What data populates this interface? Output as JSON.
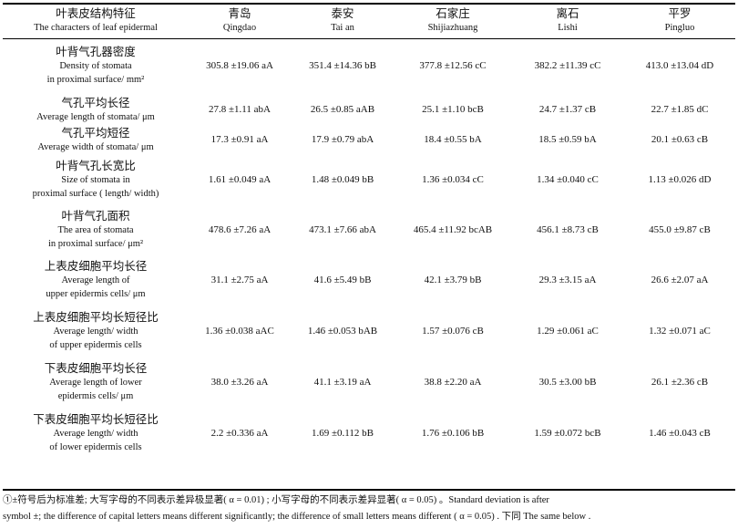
{
  "table": {
    "header": {
      "feature": {
        "zh": "叶表皮结构特征",
        "en": "The characters of leaf epidermal"
      },
      "sites": [
        {
          "zh": "青岛",
          "en": "Qingdao"
        },
        {
          "zh": "泰安",
          "en": "Tai an"
        },
        {
          "zh": "石家庄",
          "en": "Shijiazhuang"
        },
        {
          "zh": "离石",
          "en": "Lishi"
        },
        {
          "zh": "平罗",
          "en": "Pingluo"
        }
      ]
    },
    "rows": [
      {
        "zh": "叶背气孔器密度",
        "en": [
          "Density of stomata",
          "in proximal surface/ mm²"
        ],
        "values": [
          "305.8 ±19.06 aA",
          "351.4 ±14.36 bB",
          "377.8 ±12.56 cC",
          "382.2 ±11.39 cC",
          "413.0 ±13.04 dD"
        ]
      },
      {
        "zh": "气孔平均长径",
        "en": [
          "Average length of stomata/ μm"
        ],
        "values": [
          "27.8 ±1.11 abA",
          "26.5 ±0.85 aAB",
          "25.1 ±1.10 bcB",
          "24.7 ±1.37 cB",
          "22.7 ±1.85 dC"
        ]
      },
      {
        "zh": "气孔平均短径",
        "en": [
          "Average width of stomata/ μm"
        ],
        "values": [
          "17.3 ±0.91 aA",
          "17.9 ±0.79 abA",
          "18.4 ±0.55 bA",
          "18.5 ±0.59 bA",
          "20.1 ±0.63 cB"
        ]
      },
      {
        "zh": "叶背气孔长宽比",
        "en": [
          "Size of stomata in",
          "proximal surface ( length/ width)"
        ],
        "values": [
          "1.61 ±0.049 aA",
          "1.48 ±0.049 bB",
          "1.36 ±0.034 cC",
          "1.34 ±0.040 cC",
          "1.13 ±0.026 dD"
        ]
      },
      {
        "zh": "叶背气孔面积",
        "en": [
          "The area of stomata",
          "in proximal surface/ μm²"
        ],
        "values": [
          "478.6 ±7.26 aA",
          "473.1 ±7.66 abA",
          "465.4 ±11.92 bcAB",
          "456.1 ±8.73 cB",
          "455.0 ±9.87 cB"
        ]
      },
      {
        "zh": "上表皮细胞平均长径",
        "en": [
          "Average length of",
          "upper epidermis cells/ μm"
        ],
        "values": [
          "31.1 ±2.75 aA",
          "41.6 ±5.49 bB",
          "42.1 ±3.79 bB",
          "29.3 ±3.15 aA",
          "26.6 ±2.07 aA"
        ]
      },
      {
        "zh": "上表皮细胞平均长短径比",
        "en": [
          "Average length/ width",
          "of upper epidermis cells"
        ],
        "values": [
          "1.36 ±0.038 aAC",
          "1.46 ±0.053 bAB",
          "1.57 ±0.076 cB",
          "1.29 ±0.061 aC",
          "1.32 ±0.071 aC"
        ]
      },
      {
        "zh": "下表皮细胞平均长径",
        "en": [
          "Average length of lower",
          "epidermis cells/ μm"
        ],
        "values": [
          "38.0 ±3.26 aA",
          "41.1 ±3.19 aA",
          "38.8 ±2.20 aA",
          "30.5 ±3.00 bB",
          "26.1 ±2.36 cB"
        ]
      },
      {
        "zh": "下表皮细胞平均长短径比",
        "en": [
          "Average length/ width",
          "of lower epidermis cells"
        ],
        "values": [
          "2.2 ±0.336 aA",
          "1.69 ±0.112 bB",
          "1.76 ±0.106 bB",
          "1.59 ±0.072 bcB",
          "1.46 ±0.043 cB"
        ]
      }
    ]
  },
  "footnote": {
    "line1": "①±符号后为标准差; 大写字母的不同表示差异极显著( α = 0.01) ; 小写字母的不同表示差异显著( α = 0.05) 。Standard deviation is after",
    "line2": "symbol ±; the difference of capital letters means different significantly; the difference of small letters means different ( α = 0.05) . 下同 The same below ."
  }
}
